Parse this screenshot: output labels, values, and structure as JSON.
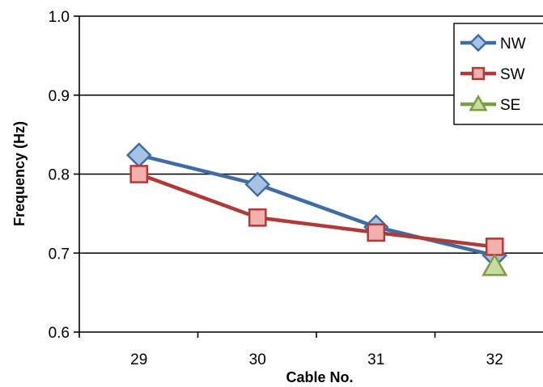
{
  "chart_data": {
    "type": "line",
    "xlabel": "Cable No.",
    "ylabel": "Frequency (Hz)",
    "categories": [
      "29",
      "30",
      "31",
      "32"
    ],
    "ylim": [
      0.6,
      1.0
    ],
    "yticks": [
      "0.6",
      "0.7",
      "0.8",
      "0.9",
      "1.0"
    ],
    "grid": "horizontal",
    "legend_position": "top-right",
    "series": [
      {
        "name": "NW",
        "marker": "diamond",
        "color": "#3E6CA5",
        "fill": "#A7C3E4",
        "values": [
          0.824,
          0.787,
          0.733,
          0.697
        ]
      },
      {
        "name": "SW",
        "marker": "square",
        "color": "#B23A36",
        "fill": "#F2B1AF",
        "values": [
          0.8,
          0.745,
          0.726,
          0.708
        ]
      },
      {
        "name": "SE",
        "marker": "triangle",
        "color": "#7E9D3F",
        "fill": "#C7DC9E",
        "values": [
          null,
          null,
          null,
          0.683
        ]
      }
    ]
  }
}
